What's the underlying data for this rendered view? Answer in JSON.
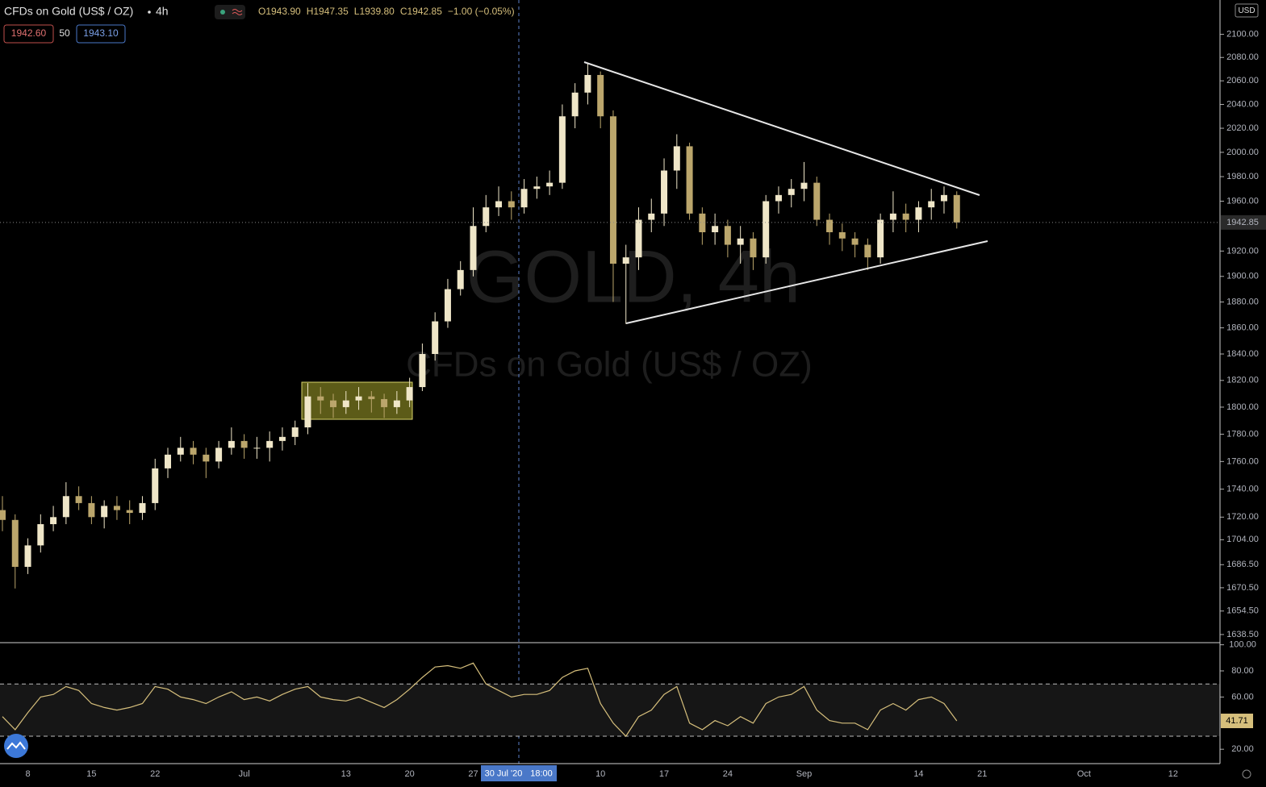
{
  "chart_data": [
    {
      "type": "candlestick",
      "title": "CFDs on Gold (US$ / OZ)",
      "interval": "4h",
      "watermark": "GOLD, 4h",
      "ohlc_labels": [
        "O1943.90",
        "H1947.35",
        "L1939.80",
        "C1942.85"
      ],
      "change": "−1.00 (−0.05%)",
      "bid": "1942.60",
      "spread": "50",
      "ask": "1943.10",
      "currency": "USD",
      "crosshair_date": "30 Jul '20",
      "crosshair_time": "18:00",
      "last_price": 1942.85,
      "log_scale": true,
      "grid": false,
      "up_color": "#efe6c8",
      "down_color": "#bba66c",
      "categories": [
        null,
        null,
        "8",
        null,
        null,
        null,
        null,
        "15",
        null,
        null,
        null,
        null,
        "22",
        null,
        null,
        null,
        null,
        null,
        null,
        "Jul",
        null,
        null,
        null,
        null,
        null,
        null,
        null,
        "13",
        null,
        null,
        null,
        null,
        "20",
        null,
        null,
        null,
        null,
        "27",
        null,
        null,
        null,
        null,
        null,
        null,
        null,
        null,
        null,
        "10",
        null,
        null,
        null,
        null,
        "17",
        null,
        null,
        null,
        null,
        "24",
        null,
        null,
        null,
        null,
        null,
        "Sep",
        null,
        null,
        null,
        null,
        null,
        null,
        null,
        null,
        "14",
        null,
        null,
        null,
        null,
        "21",
        null,
        null,
        null,
        null,
        null,
        null,
        null,
        "Oct",
        null,
        null,
        null,
        null,
        null,
        null,
        "12",
        null,
        null,
        null,
        null
      ],
      "open": [
        1725,
        1718,
        1685,
        1700,
        1715,
        1720,
        1735,
        1730,
        1720,
        1728,
        1725,
        1723,
        1730,
        1755,
        1765,
        1770,
        1765,
        1760,
        1770,
        1775,
        1770,
        1770,
        1775,
        1778,
        1785,
        1808,
        1805,
        1800,
        1805,
        1808,
        1806,
        1800,
        1805,
        1815,
        1840,
        1865,
        1890,
        1905,
        1940,
        1955,
        1960,
        1955,
        1970,
        1972,
        1975,
        2030,
        2050,
        2065,
        2030,
        1910,
        1915,
        1945,
        1950,
        1985,
        2005,
        1950,
        1935,
        1940,
        1925,
        1930,
        1915,
        1960,
        1965,
        1970,
        1975,
        1945,
        1935,
        1930,
        1925,
        1915,
        1945,
        1950,
        1945,
        1955,
        1960,
        1965,
        null,
        null,
        null,
        null,
        null,
        null,
        null,
        null,
        null,
        null,
        null,
        null,
        null,
        null,
        null,
        null,
        null,
        null,
        null,
        null,
        null
      ],
      "high": [
        1735,
        1722,
        1705,
        1722,
        1728,
        1745,
        1742,
        1735,
        1732,
        1735,
        1732,
        1735,
        1762,
        1770,
        1778,
        1775,
        1770,
        1775,
        1785,
        1780,
        1778,
        1782,
        1785,
        1790,
        1818,
        1815,
        1810,
        1812,
        1815,
        1812,
        1810,
        1812,
        1822,
        1848,
        1872,
        1898,
        1912,
        1955,
        1965,
        1972,
        1968,
        1978,
        1980,
        1985,
        2040,
        2058,
        2075,
        2068,
        2035,
        1925,
        1955,
        1962,
        1995,
        2015,
        2008,
        1955,
        1950,
        1945,
        1940,
        1935,
        1965,
        1972,
        1978,
        1992,
        1980,
        1950,
        1942,
        1935,
        1930,
        1950,
        1968,
        1958,
        1960,
        1970,
        1972,
        1968,
        null,
        null,
        null,
        null,
        null,
        null,
        null,
        null,
        null,
        null,
        null,
        null,
        null,
        null,
        null,
        null,
        null,
        null,
        null,
        null,
        null
      ],
      "low": [
        1710,
        1670,
        1680,
        1695,
        1710,
        1715,
        1725,
        1715,
        1712,
        1718,
        1715,
        1718,
        1725,
        1748,
        1760,
        1758,
        1748,
        1755,
        1765,
        1762,
        1762,
        1760,
        1768,
        1772,
        1780,
        1795,
        1792,
        1795,
        1798,
        1796,
        1792,
        1795,
        1800,
        1812,
        1835,
        1860,
        1885,
        1900,
        1935,
        1948,
        1945,
        1950,
        1962,
        1965,
        1970,
        2020,
        2040,
        2020,
        1880,
        1863,
        1905,
        1935,
        1940,
        1970,
        1945,
        1925,
        1925,
        1915,
        1910,
        1905,
        1910,
        1950,
        1955,
        1960,
        1940,
        1925,
        1920,
        1915,
        1905,
        1910,
        1935,
        1935,
        1935,
        1945,
        1950,
        1938,
        null,
        null,
        null,
        null,
        null,
        null,
        null,
        null,
        null,
        null,
        null,
        null,
        null,
        null,
        null,
        null,
        null,
        null,
        null,
        null,
        null
      ],
      "close": [
        1718,
        1685,
        1700,
        1715,
        1720,
        1735,
        1730,
        1720,
        1728,
        1725,
        1723,
        1730,
        1755,
        1765,
        1770,
        1765,
        1760,
        1770,
        1775,
        1770,
        1770,
        1775,
        1778,
        1785,
        1808,
        1805,
        1800,
        1805,
        1808,
        1806,
        1800,
        1805,
        1815,
        1840,
        1865,
        1890,
        1905,
        1940,
        1955,
        1960,
        1955,
        1970,
        1972,
        1975,
        2030,
        2050,
        2065,
        2030,
        1910,
        1915,
        1945,
        1950,
        1985,
        2005,
        1950,
        1935,
        1940,
        1925,
        1930,
        1915,
        1960,
        1965,
        1970,
        1975,
        1945,
        1935,
        1930,
        1925,
        1915,
        1945,
        1950,
        1945,
        1955,
        1960,
        1965,
        1942.85,
        null,
        null,
        null,
        null,
        null,
        null,
        null,
        null,
        null,
        null,
        null,
        null,
        null,
        null,
        null,
        null,
        null,
        null,
        null,
        null,
        null
      ],
      "ylim": [
        1633,
        2130
      ],
      "yticks": [
        {
          "value": 2100,
          "label": "2100.00"
        },
        {
          "value": 2080,
          "label": "2080.00"
        },
        {
          "value": 2060,
          "label": "2060.00"
        },
        {
          "value": 2040,
          "label": "2040.00"
        },
        {
          "value": 2020,
          "label": "2020.00"
        },
        {
          "value": 2000,
          "label": "2000.00"
        },
        {
          "value": 1980,
          "label": "1980.00"
        },
        {
          "value": 1960,
          "label": "1960.00"
        },
        {
          "value": 1920,
          "label": "1920.00"
        },
        {
          "value": 1900,
          "label": "1900.00"
        },
        {
          "value": 1880,
          "label": "1880.00"
        },
        {
          "value": 1860,
          "label": "1860.00"
        },
        {
          "value": 1840,
          "label": "1840.00"
        },
        {
          "value": 1820,
          "label": "1820.00"
        },
        {
          "value": 1800,
          "label": "1800.00"
        },
        {
          "value": 1780,
          "label": "1780.00"
        },
        {
          "value": 1760,
          "label": "1760.00"
        },
        {
          "value": 1740,
          "label": "1740.00"
        },
        {
          "value": 1720,
          "label": "1720.00"
        },
        {
          "value": 1704,
          "label": "1704.00"
        },
        {
          "value": 1686.5,
          "label": "1686.50"
        },
        {
          "value": 1670.5,
          "label": "1670.50"
        },
        {
          "value": 1654.5,
          "label": "1654.50"
        },
        {
          "value": 1638.5,
          "label": "1638.50"
        }
      ]
    },
    {
      "type": "line",
      "color": "#d6bf7c",
      "bands": [
        30,
        70
      ],
      "values": [
        45,
        35,
        48,
        60,
        62,
        68,
        65,
        55,
        52,
        50,
        52,
        55,
        68,
        66,
        60,
        58,
        55,
        60,
        64,
        58,
        60,
        57,
        62,
        66,
        68,
        60,
        58,
        57,
        60,
        56,
        52,
        58,
        66,
        75,
        83,
        84,
        82,
        86,
        70,
        65,
        60,
        62,
        62,
        65,
        75,
        80,
        82,
        55,
        40,
        30,
        45,
        50,
        62,
        68,
        40,
        35,
        42,
        38,
        45,
        40,
        55,
        60,
        62,
        68,
        50,
        42,
        40,
        40,
        35,
        50,
        55,
        50,
        58,
        60,
        55,
        41.71,
        null,
        null,
        null,
        null,
        null,
        null,
        null,
        null,
        null,
        null,
        null,
        null,
        null,
        null,
        null,
        null,
        null,
        null,
        null,
        null,
        null
      ],
      "ylim": [
        9,
        101
      ],
      "yticks": [
        {
          "value": 100,
          "label": "100.00"
        },
        {
          "value": 80,
          "label": "80.00"
        },
        {
          "value": 60,
          "label": "60.00"
        },
        {
          "value": 20,
          "label": "20.00"
        }
      ]
    }
  ]
}
